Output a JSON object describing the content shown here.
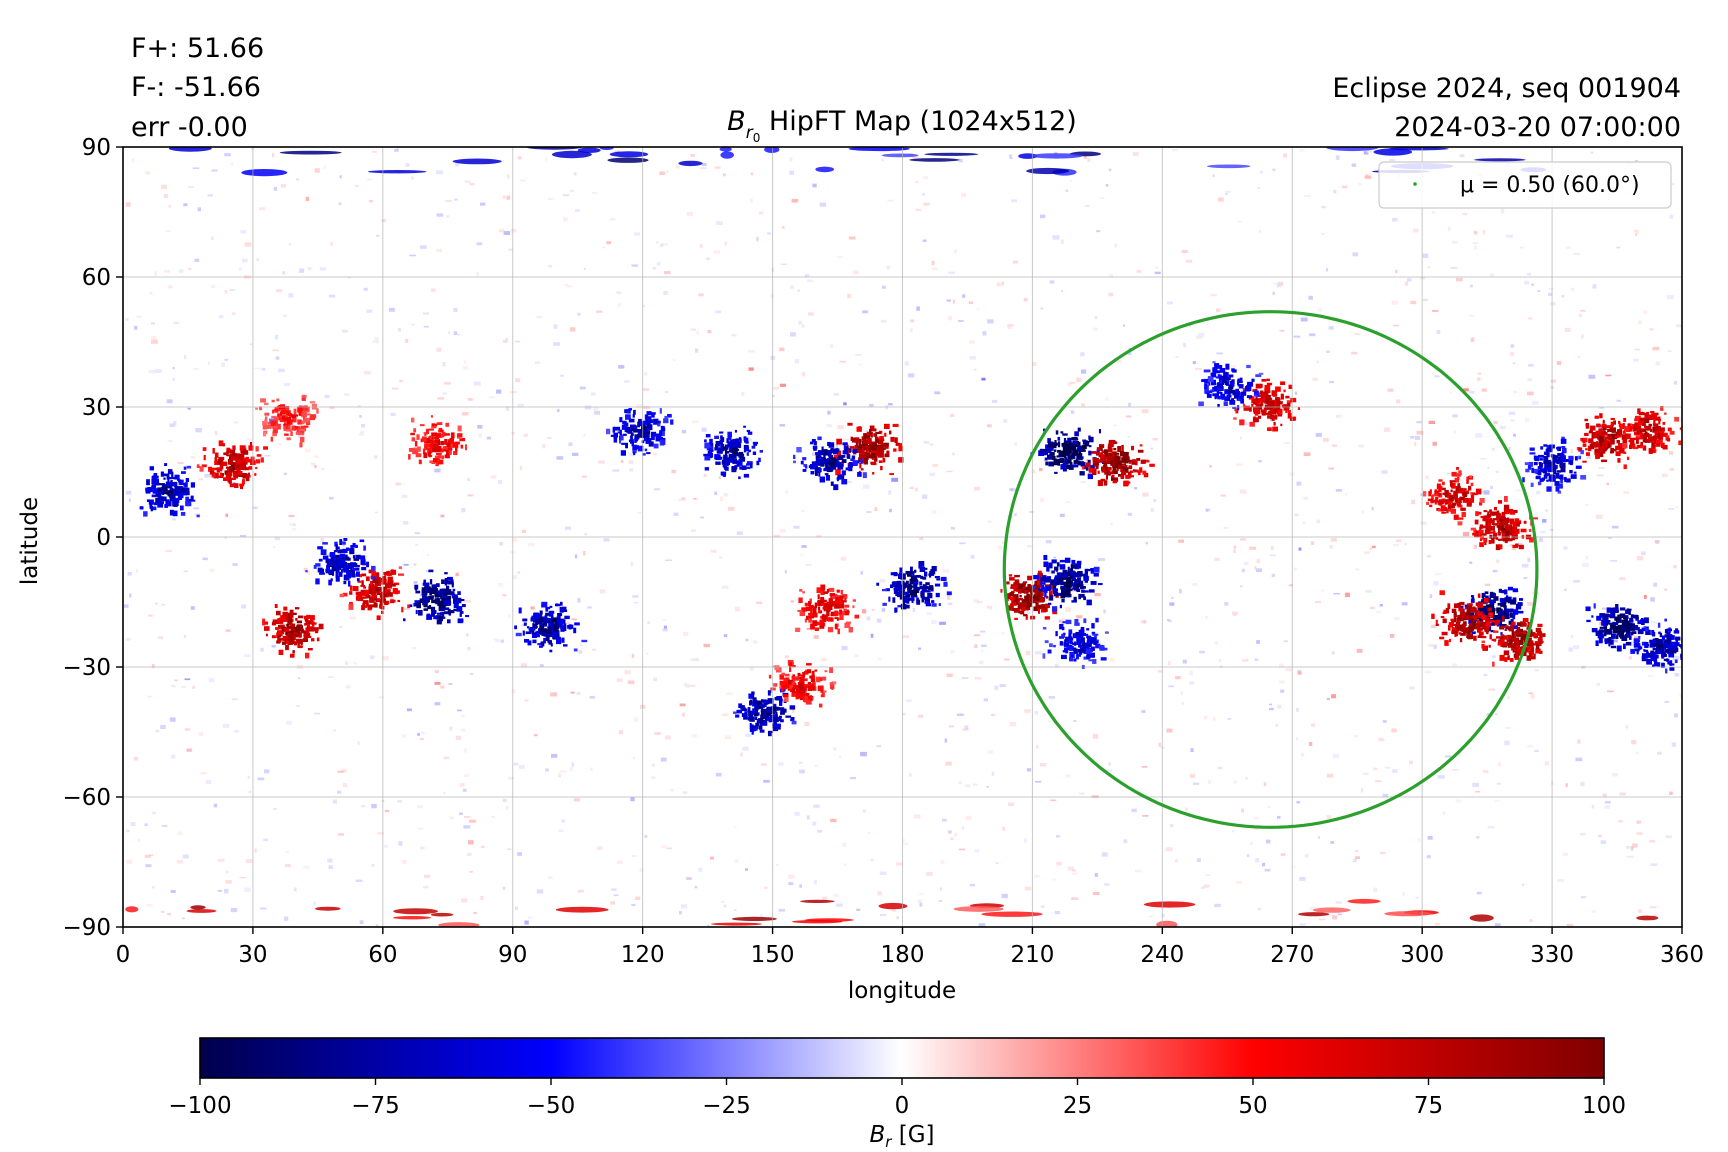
{
  "header": {
    "flux_pos": "F+: 51.66",
    "flux_neg": "F-: -51.66",
    "error": "err -0.00",
    "title_symbol": "B",
    "title_subscript": "r",
    "title_subscript2": "0",
    "title_rest": " HipFT Map (1024x512)",
    "event": "Eclipse 2024, seq 001904",
    "datetime": "2024-03-20 07:00:00"
  },
  "chart_data": {
    "type": "heatmap",
    "xlabel": "longitude",
    "ylabel": "latitude",
    "xlim": [
      0,
      360
    ],
    "ylim": [
      -90,
      90
    ],
    "x_ticks": [
      "0",
      "30",
      "60",
      "90",
      "120",
      "150",
      "180",
      "210",
      "240",
      "270",
      "300",
      "330",
      "360"
    ],
    "y_ticks": [
      "90",
      "60",
      "30",
      "0",
      "−30",
      "−60",
      "−90"
    ],
    "x_tick_values": [
      0,
      30,
      60,
      90,
      120,
      150,
      180,
      210,
      240,
      270,
      300,
      330,
      360
    ],
    "y_tick_values": [
      90,
      60,
      30,
      0,
      -30,
      -60,
      -90
    ],
    "grid": true,
    "colormap": "seismic",
    "colormap_stops": [
      "#00004c",
      "#0000ff",
      "#ffffff",
      "#ff0000",
      "#7f0000"
    ],
    "colorbar": {
      "label_symbol": "B",
      "label_subscript": "r",
      "label_unit": " [G]",
      "range": [
        -100,
        100
      ],
      "ticks": [
        "−100",
        "−75",
        "−50",
        "−25",
        "0",
        "25",
        "50",
        "75",
        "100"
      ],
      "tick_values": [
        -100,
        -75,
        -50,
        -25,
        0,
        25,
        50,
        75,
        100
      ]
    },
    "legend": {
      "placement": "upper right",
      "label": "μ = 0.50 (60.0°)",
      "color": "#2ca02c"
    },
    "contour": {
      "name": "μ = 0.50 (60.0°)",
      "center_lon": 265,
      "center_lat": -7.5,
      "lon_half_width": 61.5,
      "lat_north": 52,
      "lat_south": -67
    },
    "active_regions": [
      {
        "lon": 218,
        "lat": 20,
        "Br": -95
      },
      {
        "lon": 229,
        "lat": 18,
        "Br": 90
      },
      {
        "lon": 172,
        "lat": 21,
        "Br": 85
      },
      {
        "lon": 163,
        "lat": 18,
        "Br": -75
      },
      {
        "lon": 25,
        "lat": 17,
        "Br": 75
      },
      {
        "lon": 10,
        "lat": 11,
        "Br": -70
      },
      {
        "lon": 39,
        "lat": -21,
        "Br": 80
      },
      {
        "lon": 58,
        "lat": -12,
        "Br": 70
      },
      {
        "lon": 72,
        "lat": -14,
        "Br": -85
      },
      {
        "lon": 50,
        "lat": -6,
        "Br": -70
      },
      {
        "lon": 98,
        "lat": -20,
        "Br": -75
      },
      {
        "lon": 140,
        "lat": 20,
        "Br": -70
      },
      {
        "lon": 119,
        "lat": 25,
        "Br": -65
      },
      {
        "lon": 182,
        "lat": -11,
        "Br": -80
      },
      {
        "lon": 162,
        "lat": -16,
        "Br": 60
      },
      {
        "lon": 209,
        "lat": -13,
        "Br": 90
      },
      {
        "lon": 218,
        "lat": -10,
        "Br": -85
      },
      {
        "lon": 220,
        "lat": -24,
        "Br": -60
      },
      {
        "lon": 148,
        "lat": -40,
        "Br": -75
      },
      {
        "lon": 156,
        "lat": -34,
        "Br": 55
      },
      {
        "lon": 316,
        "lat": -17,
        "Br": -90
      },
      {
        "lon": 310,
        "lat": -19,
        "Br": 80
      },
      {
        "lon": 322,
        "lat": -23,
        "Br": 85
      },
      {
        "lon": 318,
        "lat": 3,
        "Br": 75
      },
      {
        "lon": 307,
        "lat": 10,
        "Br": 65
      },
      {
        "lon": 342,
        "lat": 23,
        "Br": 75
      },
      {
        "lon": 352,
        "lat": 25,
        "Br": 70
      },
      {
        "lon": 330,
        "lat": 17,
        "Br": -65
      },
      {
        "lon": 345,
        "lat": -20,
        "Br": -85
      },
      {
        "lon": 355,
        "lat": -25,
        "Br": -70
      },
      {
        "lon": 264,
        "lat": 31,
        "Br": 70
      },
      {
        "lon": 255,
        "lat": 35,
        "Br": -60
      },
      {
        "lon": 72,
        "lat": 22,
        "Br": 55
      },
      {
        "lon": 38,
        "lat": 28,
        "Br": 45
      }
    ]
  }
}
